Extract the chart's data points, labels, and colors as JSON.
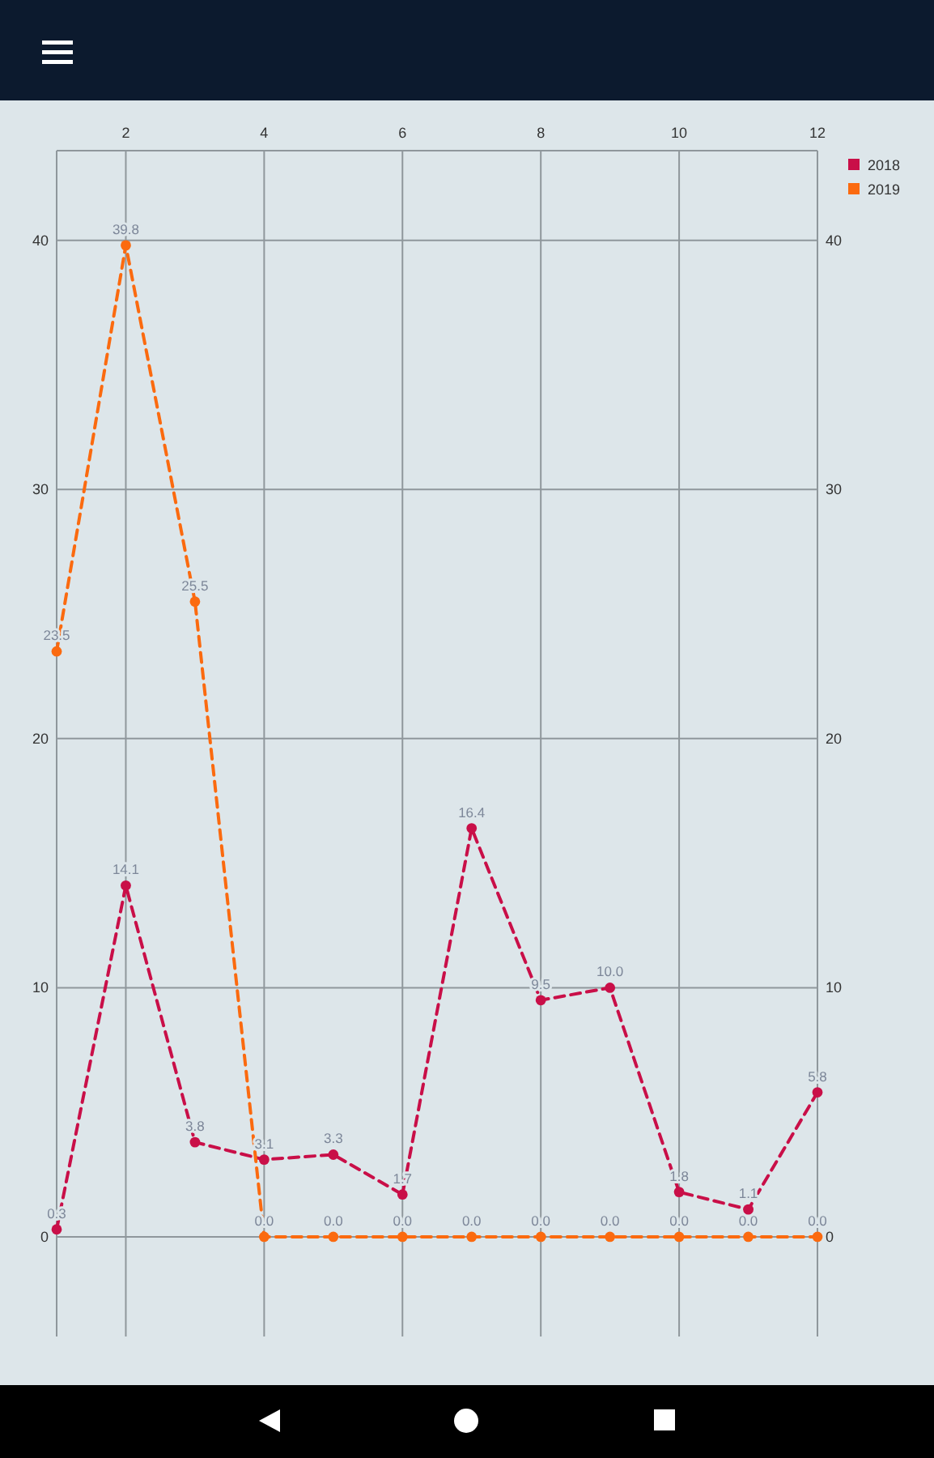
{
  "chart_data": {
    "type": "line",
    "x": [
      1,
      2,
      3,
      4,
      5,
      6,
      7,
      8,
      9,
      10,
      11,
      12
    ],
    "series": [
      {
        "name": "2018",
        "color": "#c90f48",
        "values": [
          0.3,
          14.1,
          3.8,
          3.1,
          3.3,
          1.7,
          16.4,
          9.5,
          10.0,
          1.8,
          1.1,
          5.8
        ],
        "value_labels": [
          "0.3",
          "14.1",
          "3.8",
          "3.1",
          "3.3",
          "1.7",
          "16.4",
          "9.5",
          "10.0",
          "1.8",
          "1.1",
          "5.8"
        ]
      },
      {
        "name": "2019",
        "color": "#fb6a0f",
        "values": [
          23.5,
          39.8,
          25.5,
          0,
          0,
          0,
          0,
          0,
          0,
          0,
          0,
          0
        ],
        "value_labels": [
          "23.5",
          "39.8",
          "25.5",
          "0.0",
          "0.0",
          "0.0",
          "0.0",
          "0.0",
          "0.0",
          "0.0",
          "0.0",
          "0.0"
        ]
      }
    ],
    "xlim": [
      1,
      12
    ],
    "xticks": [
      2,
      4,
      6,
      8,
      10,
      12
    ],
    "ylim": [
      -4,
      43.6
    ],
    "yticks": [
      0,
      10,
      20,
      30,
      40
    ],
    "y2lim": [
      -4,
      43.6
    ],
    "y2ticks": [
      0,
      10,
      20,
      30,
      40
    ],
    "grid": true,
    "legend": "top right",
    "marker": "circle",
    "line_style": "dashed"
  }
}
